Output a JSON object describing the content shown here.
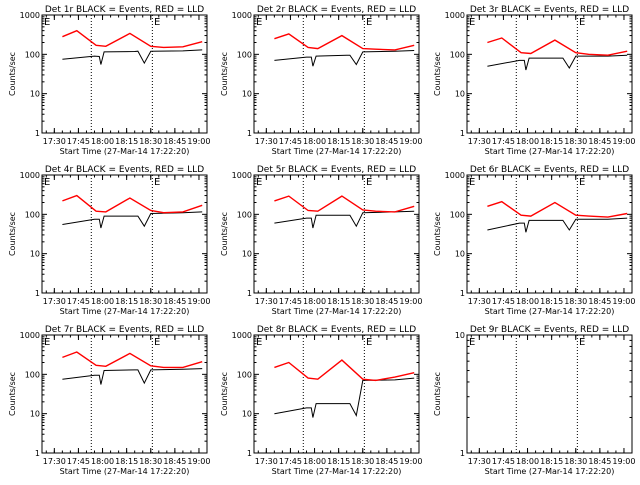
{
  "panels": [
    {
      "title": "Det 1r BLACK = Events, RED = LLD",
      "markers": [
        "E",
        "E"
      ],
      "black": [
        75,
        90,
        88,
        55,
        115,
        118,
        120,
        60,
        120,
        122,
        130
      ],
      "red": [
        280,
        400,
        170,
        160,
        340,
        160,
        150,
        155,
        210
      ]
    },
    {
      "title": "Det 2r BLACK = Events, RED = LLD",
      "markers": [
        "E",
        "E"
      ],
      "black": [
        70,
        85,
        85,
        50,
        90,
        95,
        95,
        55,
        115,
        120,
        125
      ],
      "red": [
        250,
        330,
        150,
        140,
        300,
        140,
        135,
        130,
        170
      ]
    },
    {
      "title": "Det 3r BLACK = Events, RED = LLD",
      "markers": [
        "E",
        "E"
      ],
      "black": [
        50,
        70,
        70,
        40,
        80,
        80,
        80,
        45,
        90,
        90,
        95
      ],
      "red": [
        200,
        260,
        110,
        105,
        230,
        110,
        100,
        95,
        120
      ]
    },
    {
      "title": "Det 4r BLACK = Events, RED = LLD",
      "markers": [
        "E",
        "E"
      ],
      "black": [
        55,
        75,
        75,
        45,
        90,
        90,
        90,
        50,
        105,
        110,
        115
      ],
      "red": [
        220,
        300,
        120,
        115,
        260,
        125,
        110,
        115,
        170
      ]
    },
    {
      "title": "Det 5r BLACK = Events, RED = LLD",
      "markers": [
        "E",
        "E"
      ],
      "black": [
        60,
        80,
        80,
        45,
        95,
        95,
        95,
        50,
        110,
        115,
        120
      ],
      "red": [
        220,
        290,
        125,
        120,
        290,
        130,
        120,
        115,
        160
      ]
    },
    {
      "title": "Det 6r BLACK = Events, RED = LLD",
      "markers": [
        "E",
        "E"
      ],
      "black": [
        40,
        60,
        60,
        35,
        70,
        70,
        70,
        40,
        75,
        75,
        80
      ],
      "red": [
        160,
        210,
        95,
        90,
        200,
        95,
        90,
        85,
        105
      ]
    },
    {
      "title": "Det 7r BLACK = Events, RED = LLD",
      "markers": [
        "E",
        "E"
      ],
      "black": [
        75,
        95,
        95,
        55,
        125,
        130,
        130,
        60,
        130,
        135,
        140
      ],
      "red": [
        270,
        370,
        170,
        160,
        340,
        165,
        150,
        150,
        210
      ]
    },
    {
      "title": "Det 8r BLACK = Events, RED = LLD",
      "markers": [
        "E",
        "E"
      ],
      "black": [
        10,
        14,
        14,
        8,
        18,
        18,
        18,
        9,
        70,
        72,
        80
      ],
      "red": [
        150,
        200,
        80,
        75,
        230,
        75,
        70,
        85,
        110
      ]
    },
    {
      "title": "Det 9r BLACK = Events, RED = LLD",
      "markers": [
        "E",
        "E"
      ],
      "black": [],
      "red": []
    }
  ],
  "axes": {
    "ylabel": "Counts/sec",
    "xlabel": "Start Time (27-Mar-14 17:22:20)",
    "xticks": [
      "17:30",
      "17:45",
      "18:00",
      "18:15",
      "18:30",
      "18:45",
      "19:00"
    ],
    "yticks": [
      "1",
      "10",
      "100",
      "1000"
    ],
    "yticks_sparse": [
      "1",
      "10"
    ]
  },
  "chart_data": {
    "type": "line",
    "grid": false,
    "xlabel": "Start Time (27-Mar-14 17:22:20)",
    "ylabel": "Counts/sec",
    "y_scale": "log",
    "ylim": [
      1,
      1000
    ],
    "xlim": [
      "17:22:20",
      "19:05"
    ],
    "series_colors": {
      "BLACK": "#000000",
      "RED": "#ff0000"
    },
    "series": [
      {
        "name": "Events"
      },
      {
        "name": "LLD"
      }
    ]
  }
}
